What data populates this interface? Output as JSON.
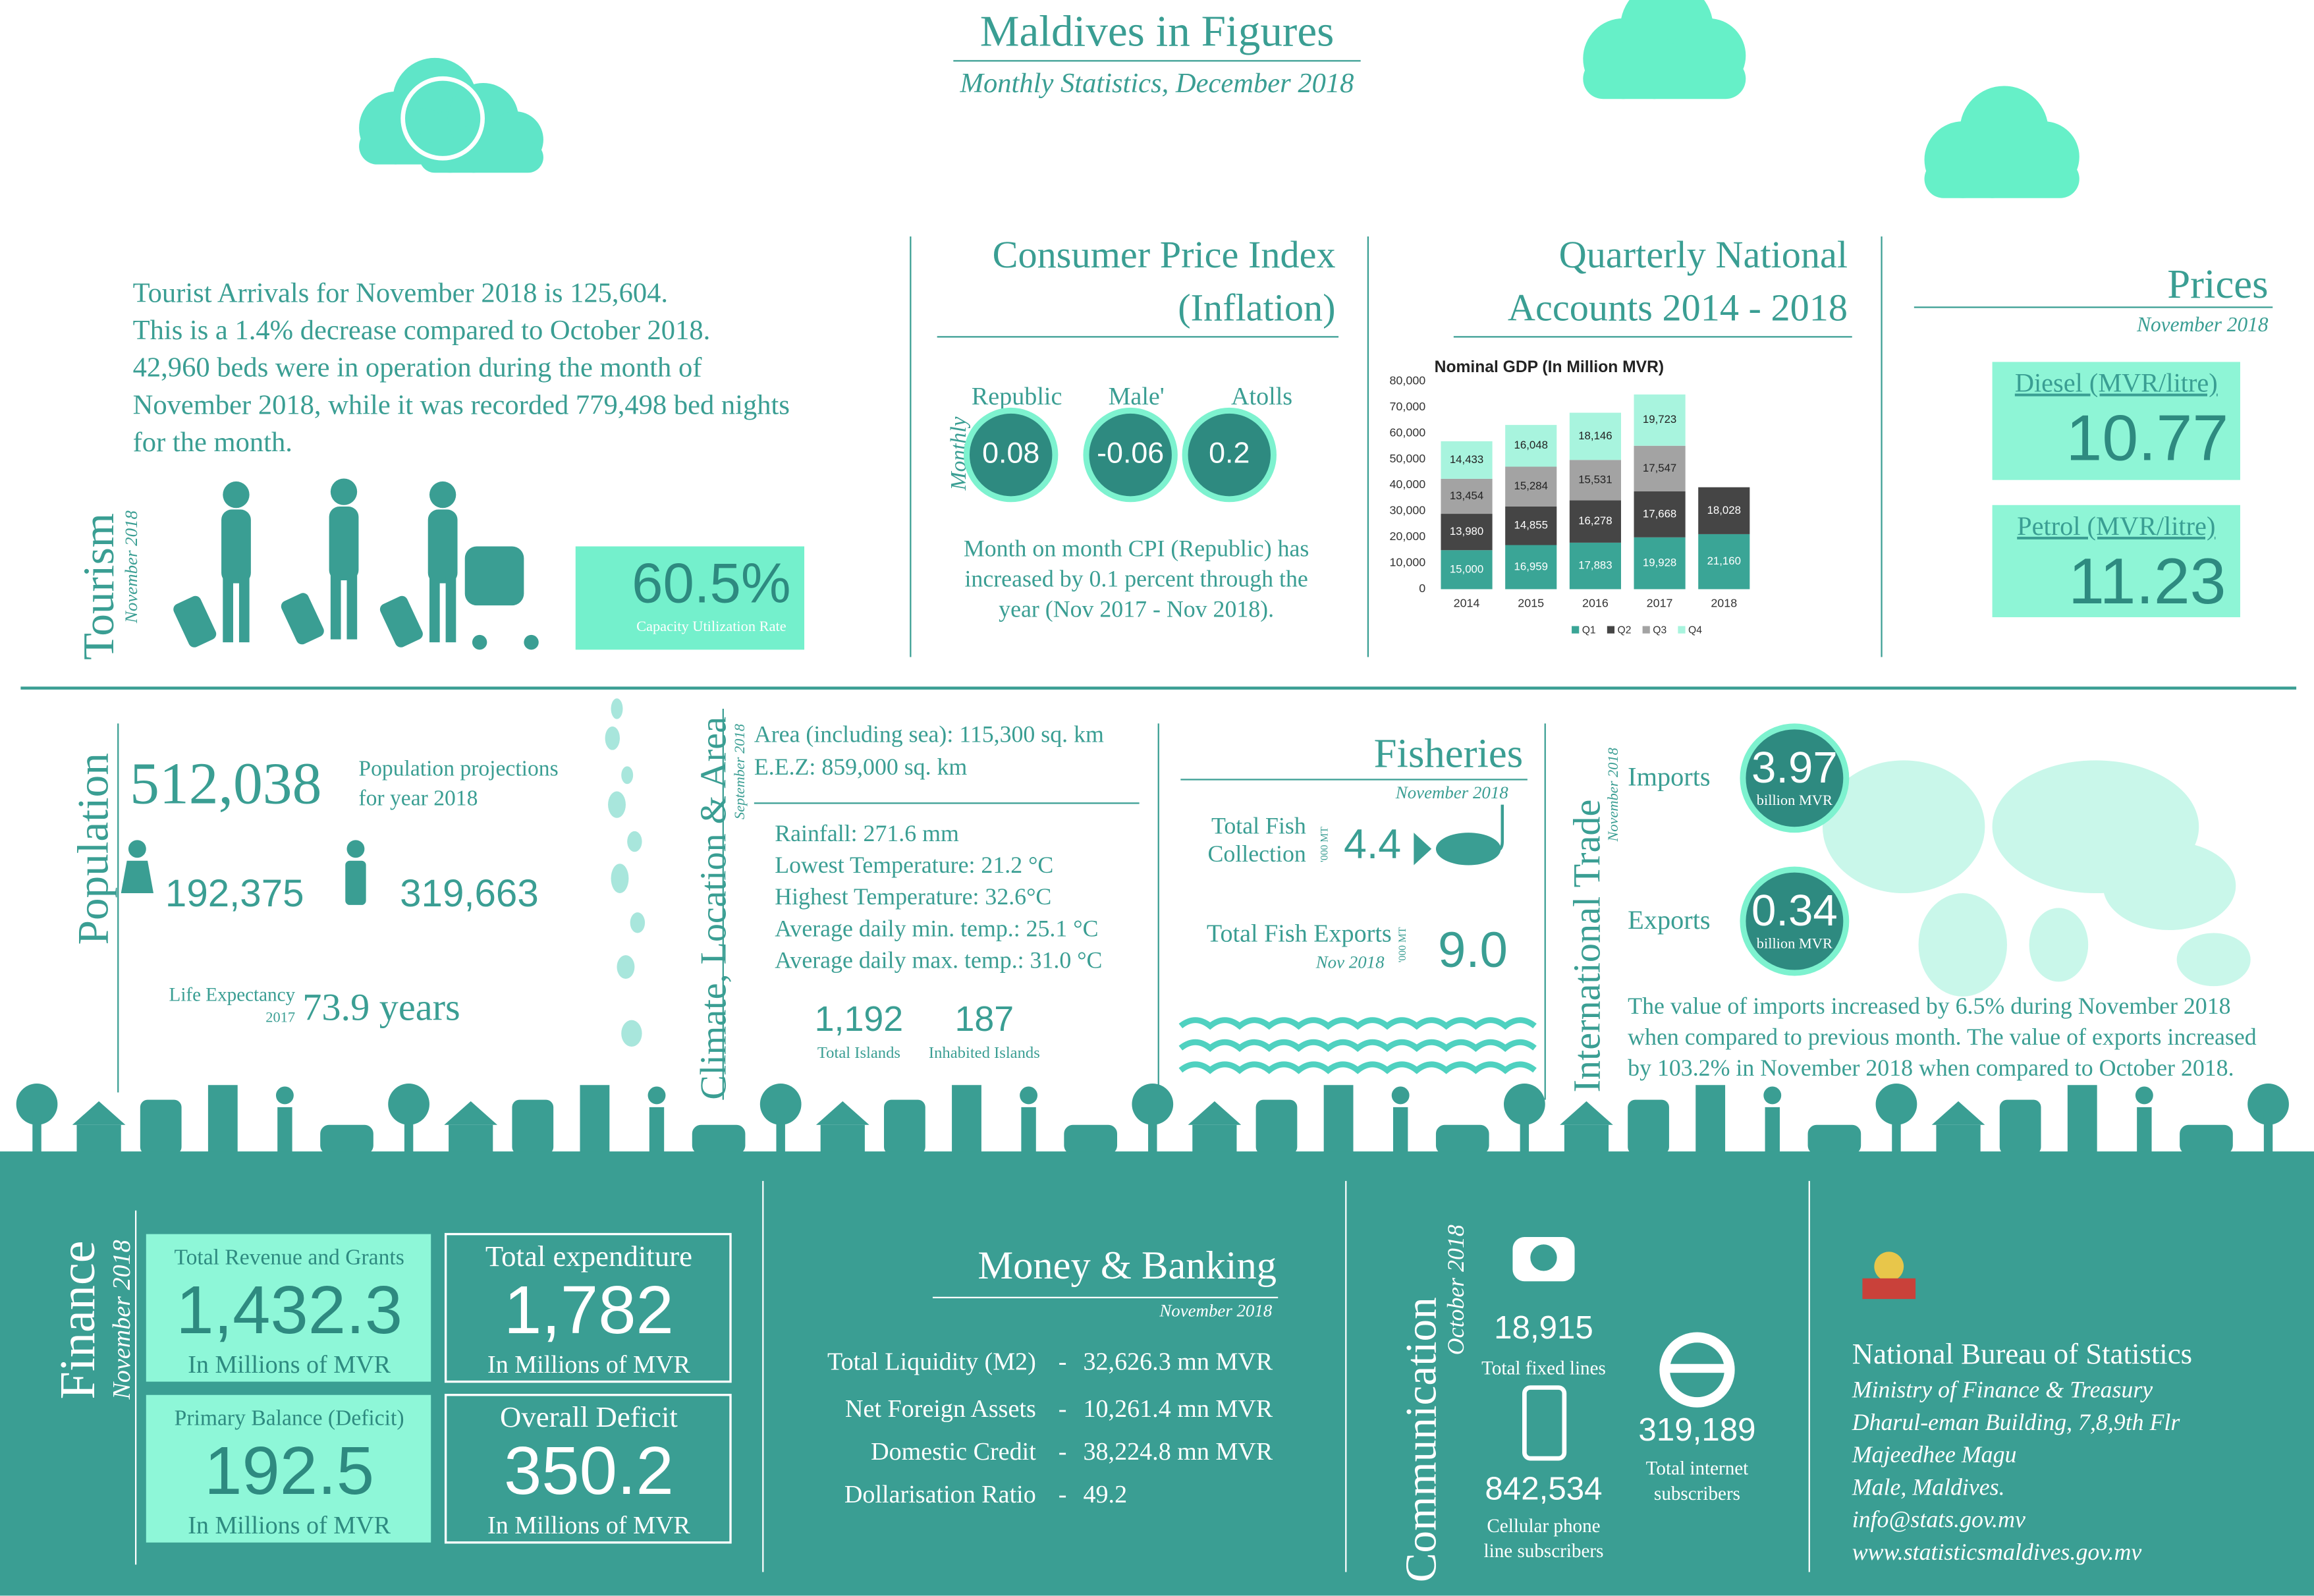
{
  "header": {
    "title": "Maldives in Figures",
    "subtitle": "Monthly Statistics, December 2018"
  },
  "tourism": {
    "heading": "Tourism",
    "period": "November 2018",
    "text": [
      "Tourist Arrivals for November 2018 is 125,604.",
      "This is a 1.4% decrease compared to October 2018.",
      "42,960 beds were in operation during the month of",
      "November 2018, while it was recorded 779,498 bed nights",
      "for the month."
    ],
    "capacity": "60.5%",
    "capacity_label": "Capacity Utilization Rate"
  },
  "cpi": {
    "title_lines": [
      "Consumer Price Index",
      "(Inflation)"
    ],
    "frequency": "Monthly",
    "regions": [
      {
        "name": "Republic",
        "value": "0.08"
      },
      {
        "name": "Male'",
        "value": "-0.06"
      },
      {
        "name": "Atolls",
        "value": "0.2"
      }
    ],
    "note": [
      "Month on month CPI (Republic) has",
      "increased by 0.1 percent through the",
      "year (Nov 2017 - Nov 2018)."
    ]
  },
  "gdp_section": {
    "title_lines": [
      "Quarterly National",
      "Accounts 2014 - 2018"
    ]
  },
  "chart_data": {
    "type": "bar",
    "stacked": true,
    "title": "Nominal GDP (In Million MVR)",
    "categories": [
      "2014",
      "2015",
      "2016",
      "2017",
      "2018"
    ],
    "series": [
      {
        "name": "Q1",
        "color": "#3aa596",
        "values": [
          15000,
          16959,
          17883,
          19928,
          21160
        ],
        "value_labels": [
          "15,000",
          "16,959",
          "17,883",
          "19,928",
          "21,160"
        ]
      },
      {
        "name": "Q2",
        "color": "#454545",
        "values": [
          13980,
          14855,
          16278,
          17668,
          18028
        ],
        "value_labels": [
          "13,980",
          "14,855",
          "16,278",
          "17,668",
          "18,028"
        ]
      },
      {
        "name": "Q3",
        "color": "#a3a3a3",
        "values": [
          13454,
          15284,
          15531,
          17547,
          null
        ],
        "value_labels": [
          "13,454",
          "15,284",
          "15,531",
          "17,547",
          null
        ]
      },
      {
        "name": "Q4",
        "color": "#a8f4de",
        "values": [
          14433,
          16048,
          18146,
          19723,
          null
        ],
        "value_labels": [
          "14,433",
          "16,048",
          "18,146",
          "19,723",
          null
        ]
      }
    ],
    "ylim": [
      0,
      80000
    ],
    "yticks": [
      0,
      {
        "value": 10000,
        "label": "10,000"
      },
      {
        "value": 20000,
        "label": "20,000"
      },
      {
        "value": 30000,
        "label": "30,000"
      },
      {
        "value": 40000,
        "label": "40,000"
      },
      {
        "value": 50000,
        "label": "50,000"
      },
      {
        "value": 60000,
        "label": "60,000"
      },
      {
        "value": 70000,
        "label": "70,000"
      },
      {
        "value": 80000,
        "label": "80,000"
      }
    ],
    "grid": false,
    "legend": "bottom"
  },
  "prices": {
    "title": "Prices",
    "period": "November 2018",
    "items": [
      {
        "label": "Diesel (MVR/litre)",
        "value": "10.77"
      },
      {
        "label": "Petrol (MVR/litre)",
        "value": "11.23"
      }
    ]
  },
  "population": {
    "heading": "Population",
    "total": "512,038",
    "total_note": [
      "Population projections",
      "for year 2018"
    ],
    "female": "192,375",
    "male": "319,663",
    "life_label": "Life Expectancy",
    "life_year": "2017",
    "life_value": "73.9 years"
  },
  "climate": {
    "heading": "Climate, Location & Area",
    "period": "September 2018",
    "area": [
      "Area (including sea): 115,300 sq. km",
      "E.E.Z: 859,000 sq. km"
    ],
    "weather": [
      "Rainfall: 271.6 mm",
      "Lowest Temperature: 21.2 °C",
      "Highest Temperature: 32.6°C",
      "Average daily min. temp.: 25.1 °C",
      "Average daily max. temp.: 31.0 °C"
    ],
    "islands": [
      {
        "value": "1,192",
        "label": "Total Islands"
      },
      {
        "value": "187",
        "label": "Inhabited Islands"
      }
    ]
  },
  "fisheries": {
    "title": "Fisheries",
    "period": "November 2018",
    "collection": {
      "label": [
        "Total Fish",
        "Collection"
      ],
      "unit": "'000 MT",
      "value": "4.4"
    },
    "exports": {
      "label": "Total Fish Exports",
      "sub": "Nov 2018",
      "unit": "'000 MT",
      "value": "9.0"
    }
  },
  "trade": {
    "heading": "International Trade",
    "period": "November 2018",
    "items": [
      {
        "label": "Imports",
        "value": "3.97",
        "unit": "billion MVR"
      },
      {
        "label": "Exports",
        "value": "0.34",
        "unit": "billion MVR"
      }
    ],
    "note": [
      "The value of imports increased by 6.5% during November 2018",
      "when compared to previous month. The value of exports increased",
      "by 103.2% in November 2018 when compared to October 2018."
    ]
  },
  "finance": {
    "heading": "Finance",
    "period": "November 2018",
    "boxes": [
      {
        "label": "Total Revenue and Grants",
        "value": "1,432.3",
        "unit": "In Millions of MVR"
      },
      {
        "label": "Total  expenditure",
        "value": "1,782",
        "unit": "In Millions of MVR"
      },
      {
        "label": "Primary Balance (Deficit)",
        "value": "192.5",
        "unit": "In Millions of MVR"
      },
      {
        "label": "Overall Deficit",
        "value": "350.2",
        "unit": "In Millions of MVR"
      }
    ]
  },
  "banking": {
    "title": "Money & Banking",
    "period": "November 2018",
    "separator": "-",
    "rows": [
      {
        "label": "Total Liquidity (M2)",
        "value": "32,626.3 mn MVR"
      },
      {
        "label": "Net Foreign Assets",
        "value": "10,261.4 mn MVR"
      },
      {
        "label": "Domestic Credit",
        "value": "38,224.8 mn MVR"
      },
      {
        "label": "Dollarisation Ratio",
        "value": "49.2"
      }
    ]
  },
  "communication": {
    "heading": "Communication",
    "period": "October 2018",
    "fixed": {
      "value": "18,915",
      "label": [
        "Total fixed lines"
      ]
    },
    "cellular": {
      "value": "842,534",
      "label": [
        "Cellular phone",
        "line subscribers"
      ]
    },
    "internet": {
      "value": "319,189",
      "label": [
        "Total internet",
        "subscribers"
      ]
    }
  },
  "footer": {
    "org": "National Bureau of Statistics",
    "lines": [
      "Ministry of Finance & Treasury",
      "Dharul-eman Building, 7,8,9th Flr",
      "Majeedhee Magu",
      "Male, Maldives.",
      "info@stats.gov.mv",
      "www.statisticsmaldives.gov.mv"
    ]
  }
}
